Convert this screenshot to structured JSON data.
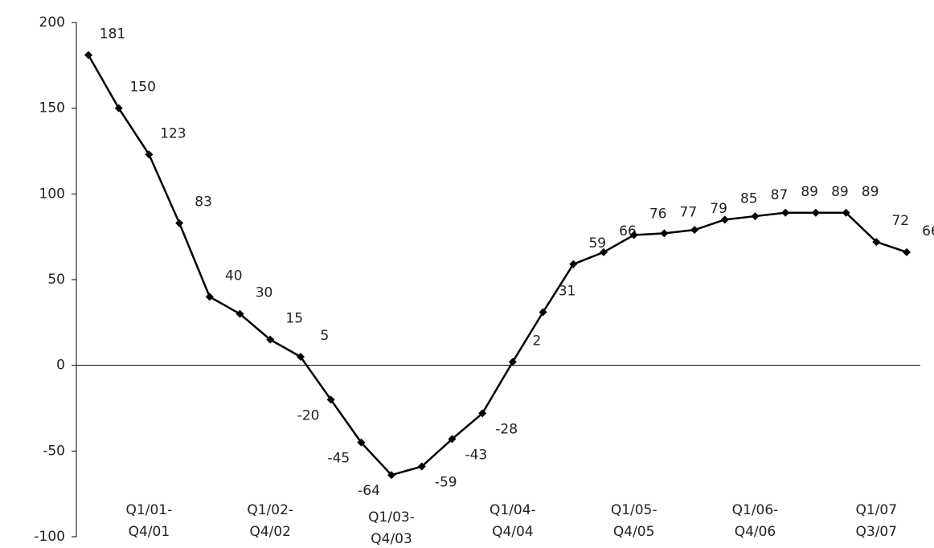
{
  "chart_data": {
    "type": "line",
    "categories": [
      null,
      null,
      "Q1/01-\nQ4/01",
      null,
      null,
      null,
      "Q1/02-\nQ4/02",
      null,
      null,
      null,
      "Q1/03-\nQ4/03",
      null,
      null,
      null,
      "Q1/04-\nQ4/04",
      null,
      null,
      null,
      "Q1/05-\nQ4/05",
      null,
      null,
      null,
      "Q1/06-\nQ4/06",
      null,
      null,
      null,
      "Q1/07\nQ3/07",
      null
    ],
    "values": [
      181,
      150,
      123,
      83,
      40,
      30,
      15,
      5,
      -20,
      -45,
      -64,
      -59,
      -43,
      -28,
      2,
      31,
      59,
      66,
      76,
      77,
      79,
      85,
      87,
      89,
      89,
      89,
      72,
      66
    ],
    "color": "#000000",
    "ylim": [
      -100,
      200
    ],
    "yticks": [
      -100,
      -50,
      0,
      50,
      100,
      150,
      200
    ]
  }
}
